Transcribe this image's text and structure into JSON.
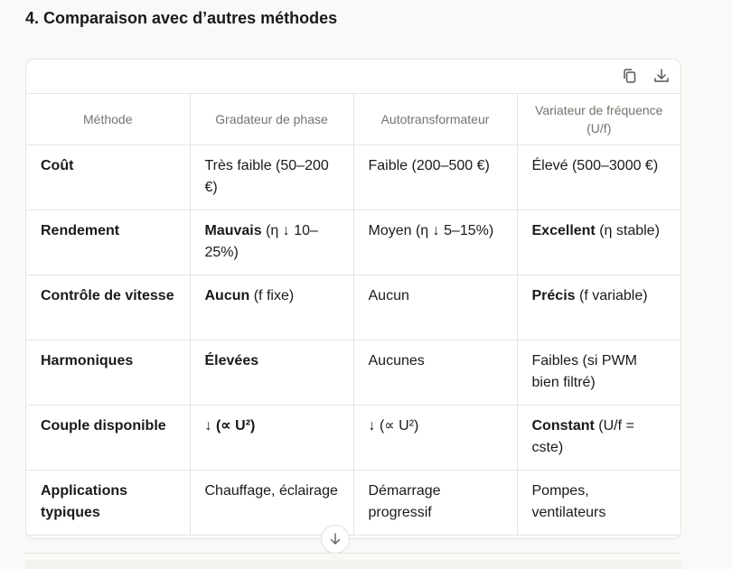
{
  "heading": "4. Comparaison avec d’autres méthodes",
  "toolbar": {
    "copy_icon": "copy-icon",
    "download_icon": "download-icon"
  },
  "table": {
    "headers": [
      "Méthode",
      "Gradateur de phase",
      "Autotransformateur",
      "Variateur de fréquence (U/f)"
    ],
    "rows": [
      {
        "label": "Coût",
        "cells": [
          [
            {
              "t": "Très faible (50–200 €)",
              "b": false
            }
          ],
          [
            {
              "t": "Faible (200–500 €)",
              "b": false
            }
          ],
          [
            {
              "t": "Élevé (500–3000 €)",
              "b": false
            }
          ]
        ]
      },
      {
        "label": "Rendement",
        "cells": [
          [
            {
              "t": "Mauvais",
              "b": true
            },
            {
              "t": " (η ↓ 10–25%)",
              "b": false
            }
          ],
          [
            {
              "t": "Moyen (η ↓ 5–15%)",
              "b": false
            }
          ],
          [
            {
              "t": "Excellent",
              "b": true
            },
            {
              "t": " (η stable)",
              "b": false
            }
          ]
        ]
      },
      {
        "label": "Contrôle de vitesse",
        "cells": [
          [
            {
              "t": "Aucun",
              "b": true
            },
            {
              "t": " (f fixe)",
              "b": false
            }
          ],
          [
            {
              "t": "Aucun",
              "b": false
            }
          ],
          [
            {
              "t": "Précis",
              "b": true
            },
            {
              "t": " (f variable)",
              "b": false
            }
          ]
        ]
      },
      {
        "label": "Harmoniques",
        "cells": [
          [
            {
              "t": "Élevées",
              "b": true
            }
          ],
          [
            {
              "t": "Aucunes",
              "b": false
            }
          ],
          [
            {
              "t": "Faibles (si PWM bien filtré)",
              "b": false
            }
          ]
        ]
      },
      {
        "label": "Couple disponible",
        "cells": [
          [
            {
              "t": "↓ (∝ U²)",
              "b": true
            }
          ],
          [
            {
              "t": "↓ (∝ U²)",
              "b": false
            }
          ],
          [
            {
              "t": "Constant",
              "b": true
            },
            {
              "t": " (U/f = cste)",
              "b": false
            }
          ]
        ]
      },
      {
        "label": "Applications typiques",
        "cells": [
          [
            {
              "t": "Chauffage, éclairage",
              "b": false
            }
          ],
          [
            {
              "t": "Démarrage progressif",
              "b": false
            }
          ],
          [
            {
              "t": "Pompes, ventilateurs",
              "b": false
            }
          ]
        ]
      }
    ]
  },
  "scroll_down_icon": "arrow-down-icon"
}
